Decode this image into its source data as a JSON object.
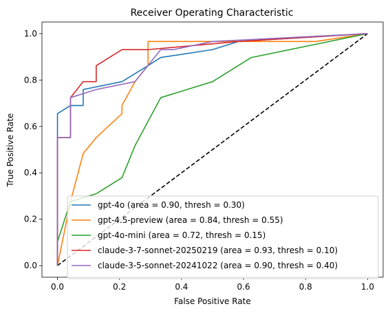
{
  "chart_data": {
    "type": "line",
    "title": "Receiver Operating Characteristic",
    "xlabel": "False Positive Rate",
    "ylabel": "True Positive Rate",
    "xlim": [
      -0.05,
      1.05
    ],
    "ylim": [
      -0.05,
      1.05
    ],
    "xticks": [
      "0.0",
      "0.2",
      "0.4",
      "0.6",
      "0.8",
      "1.0"
    ],
    "yticks": [
      "0.0",
      "0.2",
      "0.4",
      "0.6",
      "0.8",
      "1.0"
    ],
    "grid": false,
    "legend_position": "lower-right",
    "reference_line": {
      "x": [
        0,
        1
      ],
      "y": [
        0,
        1
      ],
      "color": "#000000",
      "style": "dashed"
    },
    "series": [
      {
        "name": "gpt-4o (area = 0.90, thresh = 0.30)",
        "color": "#1f77b4",
        "x": [
          0,
          0,
          0.042,
          0.042,
          0.083,
          0.083,
          0.208,
          0.292,
          0.333,
          0.5,
          0.583,
          1.0
        ],
        "y": [
          0,
          0.655,
          0.69,
          0.69,
          0.69,
          0.759,
          0.793,
          0.862,
          0.897,
          0.931,
          0.966,
          1.0
        ]
      },
      {
        "name": "gpt-4.5-preview (area = 0.84, thresh = 0.55)",
        "color": "#ff7f0e",
        "x": [
          0,
          0.042,
          0.083,
          0.125,
          0.208,
          0.208,
          0.25,
          0.292,
          0.292,
          0.5,
          0.833,
          1.0
        ],
        "y": [
          0,
          0.276,
          0.483,
          0.552,
          0.655,
          0.69,
          0.793,
          0.862,
          0.966,
          0.966,
          0.966,
          1.0
        ]
      },
      {
        "name": "gpt-4o-mini (area = 0.72, thresh = 0.15)",
        "color": "#2ca02c",
        "x": [
          0,
          0,
          0.042,
          0.125,
          0.208,
          0.25,
          0.333,
          0.5,
          0.625,
          1.0
        ],
        "y": [
          0,
          0.103,
          0.276,
          0.31,
          0.379,
          0.517,
          0.724,
          0.793,
          0.897,
          1.0
        ]
      },
      {
        "name": "claude-3-7-sonnet-20250219 (area = 0.93, thresh = 0.10)",
        "color": "#d62728",
        "x": [
          0,
          0,
          0.042,
          0.042,
          0.083,
          0.125,
          0.125,
          0.208,
          0.292,
          0.583,
          1.0
        ],
        "y": [
          0,
          0.552,
          0.552,
          0.724,
          0.793,
          0.793,
          0.862,
          0.931,
          0.931,
          0.966,
          1.0
        ]
      },
      {
        "name": "claude-3-5-sonnet-20241022 (area = 0.90, thresh = 0.40)",
        "color": "#9467bd",
        "x": [
          0,
          0,
          0.042,
          0.042,
          0.125,
          0.25,
          0.333,
          0.375,
          0.5,
          1.0
        ],
        "y": [
          0,
          0.552,
          0.552,
          0.724,
          0.759,
          0.793,
          0.931,
          0.931,
          0.966,
          1.0
        ]
      }
    ]
  }
}
